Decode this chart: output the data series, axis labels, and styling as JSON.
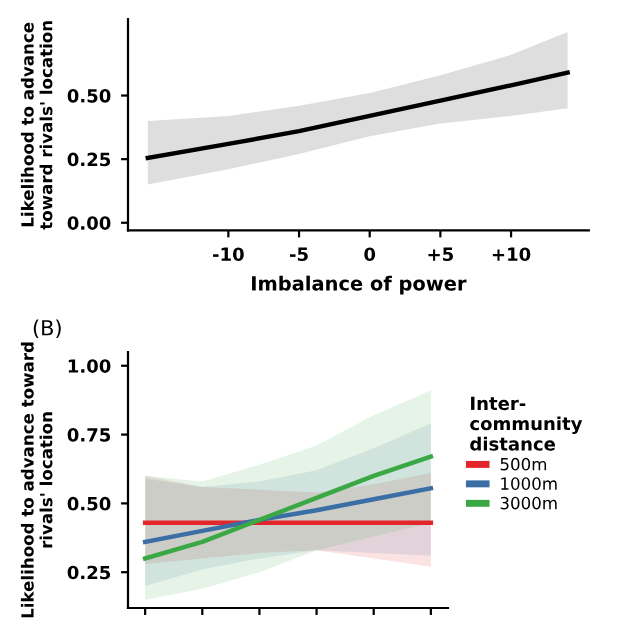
{
  "chart_data": [
    {
      "type": "line",
      "xlabel": "Imbalance of power",
      "ylabel": "Likelihood to advance toward rivals' location",
      "x": [
        -15.7,
        -10,
        -5,
        0,
        5,
        10,
        14
      ],
      "xlim": [
        -17.1,
        15.5
      ],
      "xticks": [
        {
          "value": -10,
          "label": "-10"
        },
        {
          "value": -5,
          "label": "-5"
        },
        0,
        {
          "value": 5,
          "label": "+5"
        },
        {
          "value": 10,
          "label": "+10"
        }
      ],
      "ylim": [
        -0.03,
        0.8
      ],
      "yticks": [
        {
          "value": 0,
          "label": "0.00"
        },
        {
          "value": 0.25,
          "label": "0.25"
        },
        {
          "value": 0.5,
          "label": "0.50"
        }
      ],
      "grid": false,
      "legend": false,
      "series": [
        {
          "color": "#000000",
          "values": [
            0.255,
            0.31,
            0.36,
            0.42,
            0.48,
            0.54,
            0.59
          ],
          "lower": [
            0.15,
            0.21,
            0.27,
            0.34,
            0.39,
            0.42,
            0.45
          ],
          "upper": [
            0.4,
            0.42,
            0.46,
            0.51,
            0.58,
            0.66,
            0.75
          ]
        }
      ]
    },
    {
      "type": "line",
      "title": "(B)",
      "ylabel": "Likelihood to advance toward rivals' location",
      "legend_title": "Inter-\ncommunity\ndistance",
      "categories": [
        null,
        null,
        null,
        null,
        null,
        null
      ],
      "ylim": [
        0.12,
        1.05
      ],
      "yticks": [
        {
          "value": 0.25,
          "label": "0.25"
        },
        {
          "value": 0.5,
          "label": "0.50"
        },
        {
          "value": 0.75,
          "label": "0.75"
        },
        {
          "value": 1,
          "label": "1.00"
        }
      ],
      "tick_labels": "y",
      "grid": false,
      "legend": "right",
      "series": [
        {
          "name": "500m",
          "color": "#e3262b",
          "values": [
            0.43,
            0.43,
            0.43,
            0.43,
            0.43,
            0.43
          ],
          "lower": [
            0.28,
            0.3,
            0.32,
            0.33,
            0.3,
            0.27
          ],
          "upper": [
            0.6,
            0.56,
            0.55,
            0.54,
            0.57,
            0.61
          ]
        },
        {
          "name": "1000m",
          "color": "#3a6ea5",
          "values": [
            0.36,
            0.4,
            0.44,
            0.475,
            0.515,
            0.555
          ],
          "lower": [
            0.2,
            0.26,
            0.3,
            0.33,
            0.32,
            0.31
          ],
          "upper": [
            0.59,
            0.56,
            0.58,
            0.62,
            0.7,
            0.79
          ]
        },
        {
          "name": "3000m",
          "color": "#3aa845",
          "values": [
            0.3,
            0.36,
            0.44,
            0.52,
            0.6,
            0.67
          ],
          "lower": [
            0.15,
            0.19,
            0.25,
            0.33,
            0.38,
            0.43
          ],
          "upper": [
            0.6,
            0.58,
            0.64,
            0.71,
            0.82,
            0.91
          ]
        }
      ]
    }
  ]
}
